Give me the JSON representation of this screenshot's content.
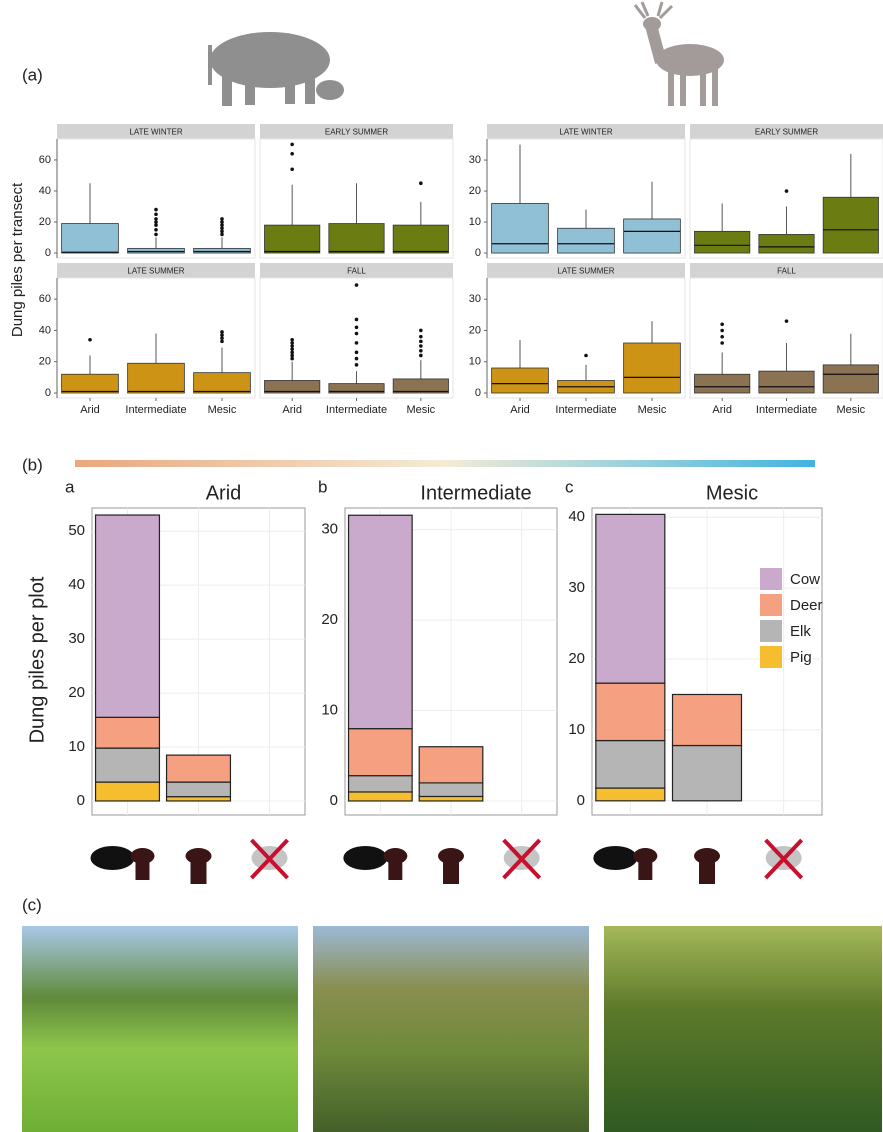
{
  "labels": {
    "a": "(a)",
    "b": "(b)",
    "c": "(c)"
  },
  "chart_data": [
    {
      "type": "box",
      "ylabel": "Dung piles per transect",
      "categories": [
        "Arid",
        "Intermediate",
        "Mesic"
      ],
      "ylim": [
        -3.2,
        73.5
      ],
      "yticks": [
        0,
        20,
        40,
        60
      ],
      "facets": [
        {
          "title": "LATE WINTER",
          "color": "#8fc0d6",
          "boxes": [
            {
              "low": 0,
              "q1": 0,
              "median": 0.5,
              "q3": 19,
              "high": 45,
              "outliers": []
            },
            {
              "low": 0,
              "q1": 0,
              "median": 1,
              "q3": 3,
              "high": 10,
              "outliers": [
                12,
                15,
                18,
                20,
                22,
                25,
                28
              ]
            },
            {
              "low": 0,
              "q1": 0,
              "median": 1,
              "q3": 3,
              "high": 10,
              "outliers": [
                12,
                14,
                16,
                18,
                20,
                22
              ]
            }
          ]
        },
        {
          "title": "EARLY SUMMER",
          "color": "#6b7d12",
          "boxes": [
            {
              "low": 0,
              "q1": 0,
              "median": 1,
              "q3": 18,
              "high": 44,
              "outliers": [
                54,
                64,
                70
              ]
            },
            {
              "low": 0,
              "q1": 0,
              "median": 1,
              "q3": 19,
              "high": 45,
              "outliers": []
            },
            {
              "low": 0,
              "q1": 0,
              "median": 1,
              "q3": 18,
              "high": 33,
              "outliers": [
                45
              ]
            }
          ]
        },
        {
          "title": "LATE SUMMER",
          "color": "#cc9314",
          "boxes": [
            {
              "low": 0,
              "q1": 0,
              "median": 1,
              "q3": 12,
              "high": 24,
              "outliers": [
                34
              ]
            },
            {
              "low": 0,
              "q1": 0,
              "median": 1,
              "q3": 19,
              "high": 38,
              "outliers": []
            },
            {
              "low": 0,
              "q1": 0,
              "median": 1,
              "q3": 13,
              "high": 29,
              "outliers": [
                33,
                35,
                37,
                39
              ]
            }
          ]
        },
        {
          "title": "FALL",
          "color": "#8a7253",
          "boxes": [
            {
              "low": 0,
              "q1": 0,
              "median": 1,
              "q3": 8,
              "high": 20,
              "outliers": [
                22,
                24,
                26,
                28,
                30,
                32,
                34
              ]
            },
            {
              "low": 0,
              "q1": 0,
              "median": 1,
              "q3": 6,
              "high": 14,
              "outliers": [
                18,
                22,
                26,
                32,
                38,
                42,
                47,
                69
              ]
            },
            {
              "low": 0,
              "q1": 0,
              "median": 1,
              "q3": 9,
              "high": 21,
              "outliers": [
                24,
                27,
                30,
                33,
                36,
                40
              ]
            }
          ]
        }
      ]
    },
    {
      "type": "box",
      "categories": [
        "Arid",
        "Intermediate",
        "Mesic"
      ],
      "ylim": [
        -1.6,
        36.8
      ],
      "yticks": [
        0,
        10,
        20,
        30
      ],
      "facets": [
        {
          "title": "LATE WINTER",
          "color": "#8fc0d6",
          "boxes": [
            {
              "low": 0,
              "q1": 0,
              "median": 3,
              "q3": 16,
              "high": 35,
              "outliers": []
            },
            {
              "low": 0,
              "q1": 0,
              "median": 3,
              "q3": 8,
              "high": 14,
              "outliers": []
            },
            {
              "low": 0,
              "q1": 0,
              "median": 7,
              "q3": 11,
              "high": 23,
              "outliers": []
            }
          ]
        },
        {
          "title": "EARLY SUMMER",
          "color": "#6b7d12",
          "boxes": [
            {
              "low": 0,
              "q1": 0,
              "median": 2.5,
              "q3": 7,
              "high": 16,
              "outliers": []
            },
            {
              "low": 0,
              "q1": 0,
              "median": 2,
              "q3": 6,
              "high": 15,
              "outliers": [
                20
              ]
            },
            {
              "low": 0,
              "q1": 0,
              "median": 7.5,
              "q3": 18,
              "high": 32,
              "outliers": []
            }
          ]
        },
        {
          "title": "LATE SUMMER",
          "color": "#cc9314",
          "boxes": [
            {
              "low": 0,
              "q1": 0,
              "median": 3,
              "q3": 8,
              "high": 17,
              "outliers": []
            },
            {
              "low": 0,
              "q1": 0,
              "median": 2,
              "q3": 4,
              "high": 9,
              "outliers": [
                12
              ]
            },
            {
              "low": 0,
              "q1": 0,
              "median": 5,
              "q3": 16,
              "high": 23,
              "outliers": []
            }
          ]
        },
        {
          "title": "FALL",
          "color": "#8a7253",
          "boxes": [
            {
              "low": 0,
              "q1": 0,
              "median": 2,
              "q3": 6,
              "high": 13,
              "outliers": [
                16,
                18,
                20,
                22
              ]
            },
            {
              "low": 0,
              "q1": 0,
              "median": 2,
              "q3": 7,
              "high": 16,
              "outliers": [
                23
              ]
            },
            {
              "low": 0,
              "q1": 0,
              "median": 6,
              "q3": 9,
              "high": 19,
              "outliers": []
            }
          ]
        }
      ]
    },
    {
      "type": "stacked-bar",
      "ylabel": "Dung piles per plot",
      "legend": "top-right",
      "series": [
        {
          "name": "Cow",
          "color": "#c9a9cc"
        },
        {
          "name": "Deer",
          "color": "#f4a081"
        },
        {
          "name": "Elk",
          "color": "#b5b5b5"
        },
        {
          "name": "Pig",
          "color": "#f6bd2e"
        }
      ],
      "panels": [
        {
          "letter": "a",
          "title": "Arid",
          "ylim": [
            -2.6,
            54.3
          ],
          "yticks": [
            0,
            10,
            20,
            30,
            40,
            50
          ],
          "categories": [
            null,
            null,
            null
          ],
          "stacks": [
            [
              37.5,
              5.7,
              6.3,
              3.5
            ],
            [
              0,
              5,
              2.7,
              0.8
            ],
            [
              0,
              0,
              0,
              0
            ]
          ]
        },
        {
          "letter": "b",
          "title": "Intermediate",
          "ylim": [
            -1.55,
            32.4
          ],
          "yticks": [
            0,
            10,
            20,
            30
          ],
          "categories": [
            null,
            null,
            null
          ],
          "stacks": [
            [
              23.6,
              5.2,
              1.8,
              1
            ],
            [
              0,
              4,
              1.5,
              0.5
            ],
            [
              0,
              0,
              0,
              0
            ]
          ]
        },
        {
          "letter": "c",
          "title": "Mesic",
          "ylim": [
            -2,
            41.3
          ],
          "yticks": [
            0,
            10,
            20,
            30,
            40
          ],
          "categories": [
            null,
            null,
            null
          ],
          "stacks": [
            [
              23.8,
              8.1,
              6.7,
              1.8
            ],
            [
              0,
              7.2,
              7.8,
              0
            ],
            [
              0,
              0,
              0,
              0
            ]
          ]
        }
      ]
    }
  ]
}
